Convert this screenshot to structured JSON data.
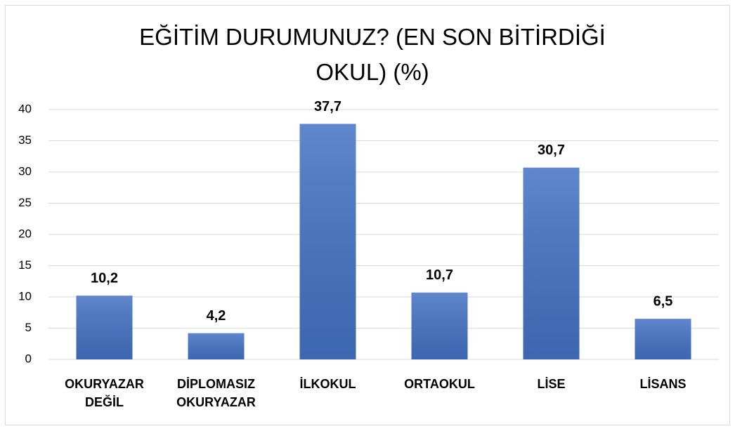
{
  "chart_data": {
    "type": "bar",
    "title": "EĞİTİM DURUMUNUZ? (EN SON BİTİRDİĞİ OKUL) (%)",
    "categories": [
      "OKURYAZAR DEĞİL",
      "DİPLOMASIZ OKURYAZAR",
      "İLKOKUL",
      "ORTAOKUL",
      "LİSE",
      "LİSANS"
    ],
    "values": [
      10.2,
      4.2,
      37.7,
      10.7,
      30.7,
      6.5
    ],
    "value_labels": [
      "10,2",
      "4,2",
      "37,7",
      "10,7",
      "30,7",
      "6,5"
    ],
    "color": "#4472c4",
    "ylim": [
      0,
      40
    ],
    "yticks": [
      0,
      5,
      10,
      15,
      20,
      25,
      30,
      35,
      40
    ],
    "grid": true
  }
}
